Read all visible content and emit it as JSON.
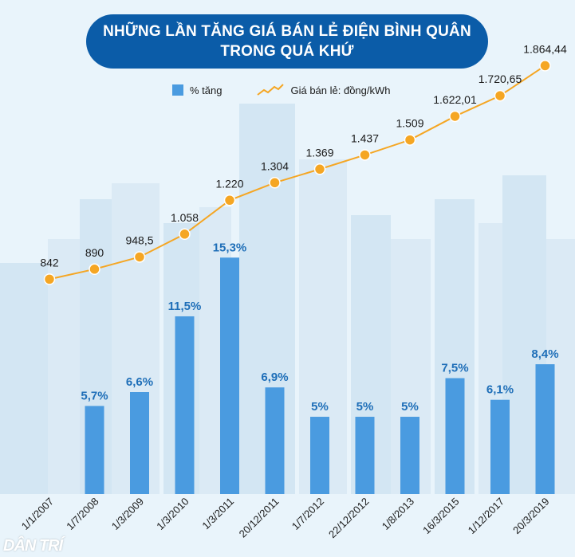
{
  "title": {
    "line1": "NHỮNG LẦN TĂNG GIÁ BÁN LẺ ĐIỆN BÌNH QUÂN",
    "line2": "TRONG QUÁ KHỨ"
  },
  "legend": {
    "bar_label": "% tăng",
    "line_label": "Giá bán lẻ: đồng/kWh"
  },
  "watermark": "DÂN TRÍ",
  "colors": {
    "bar": "#4a9be0",
    "bar_label": "#1f6fb8",
    "line": "#f5a623",
    "title_bg": "#0b5ca8",
    "background": "#e9f4fb"
  },
  "chart_data": {
    "type": "bar+line",
    "categories": [
      "1/1/2007",
      "1/7/2008",
      "1/3/2009",
      "1/3/2010",
      "1/3/2011",
      "20/12/2011",
      "1/7/2012",
      "22/12/2012",
      "1/8/2013",
      "16/3/2015",
      "1/12/2017",
      "20/3/2019"
    ],
    "series": [
      {
        "name": "% tăng",
        "kind": "bar",
        "values": [
          null,
          5.7,
          6.6,
          11.5,
          15.3,
          6.9,
          5,
          5,
          5,
          7.5,
          6.1,
          8.4
        ],
        "labels": [
          "",
          "5,7%",
          "6,6%",
          "11,5%",
          "15,3%",
          "6,9%",
          "5%",
          "5%",
          "5%",
          "7,5%",
          "6,1%",
          "8,4%"
        ]
      },
      {
        "name": "Giá bán lẻ: đồng/kWh",
        "kind": "line",
        "values": [
          842,
          890,
          948.5,
          1058,
          1220,
          1304,
          1369,
          1437,
          1509,
          1622.01,
          1720.65,
          1864.44
        ],
        "labels": [
          "842",
          "890",
          "948,5",
          "1.058",
          "1.220",
          "1.304",
          "1.369",
          "1.437",
          "1.509",
          "1.622,01",
          "1.720,65",
          "1.864,44"
        ]
      }
    ],
    "bar_ylim": [
      0,
      16.5
    ],
    "line_ylim": [
      500,
      1950
    ],
    "grid": false,
    "legend_position": "top"
  }
}
